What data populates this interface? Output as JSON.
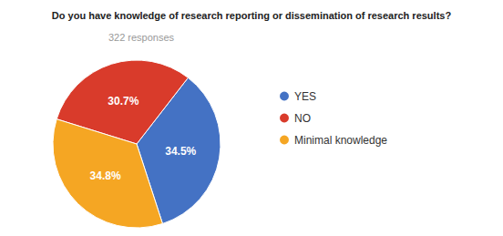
{
  "chart_data": {
    "type": "pie",
    "title": "Do you have knowledge of research reporting or dissemination of research results?",
    "subtitle": "322 responses",
    "categories": [
      "YES",
      "NO",
      "Minimal knowledge"
    ],
    "values": [
      34.5,
      30.7,
      34.8
    ],
    "value_labels": [
      "34.5%",
      "30.7%",
      "34.8%"
    ],
    "colors": [
      "#4472C4",
      "#D93B2B",
      "#F5A623"
    ],
    "data_labels": true,
    "legend": "right"
  }
}
